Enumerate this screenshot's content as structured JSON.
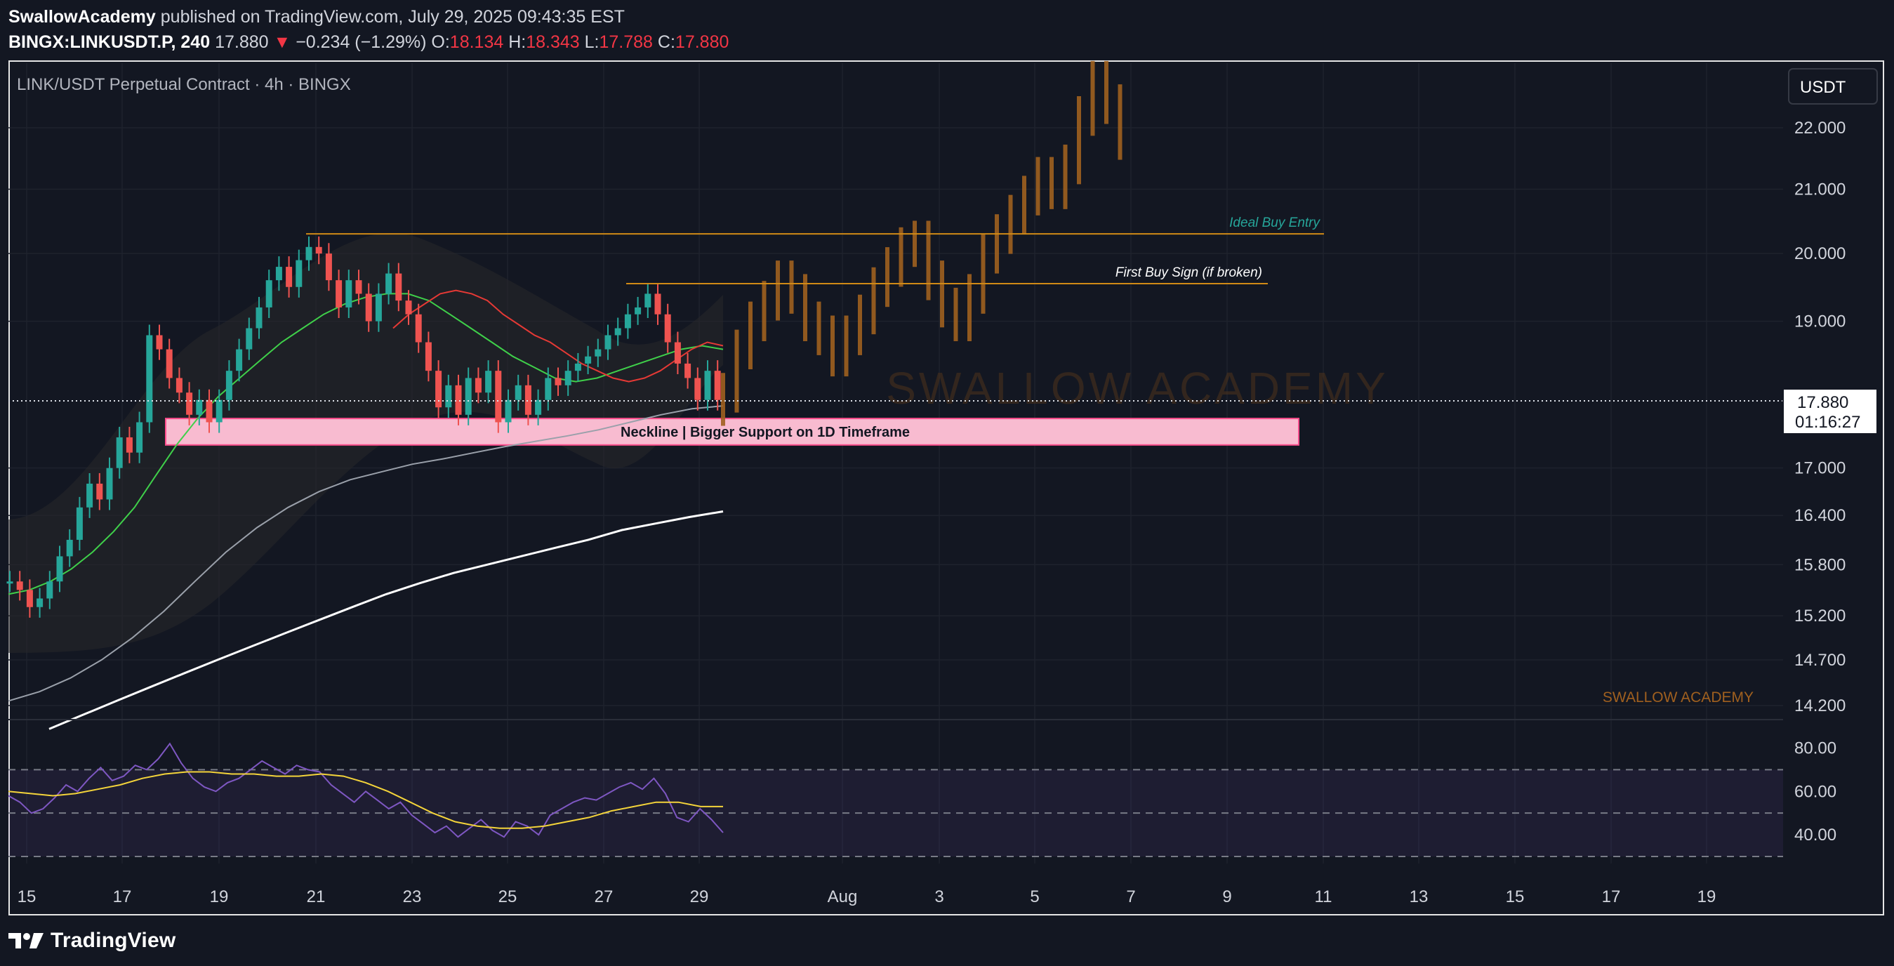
{
  "header": {
    "author": "SwallowAcademy",
    "published": "published on TradingView.com, July 29, 2025 09:43:35 EST",
    "symbol": "BINGX:LINKUSDT.P, 240",
    "last": "17.880",
    "change": "−0.234 (−1.29%)",
    "open_label": "O:",
    "open": "18.134",
    "high_label": "H:",
    "high": "18.343",
    "low_label": "L:",
    "low": "17.788",
    "close_label": "C:",
    "close": "17.880"
  },
  "legend": "LINK/USDT Perpetual Contract · 4h · BINGX",
  "currency_button": "USDT",
  "price_tag": {
    "price": "17.880",
    "countdown": "01:16:27"
  },
  "watermark": "SWALLOW ACADEMY",
  "signature": "SWALLOW ACADEMY",
  "footer": {
    "brand": "TradingView"
  },
  "colors": {
    "background": "#131722",
    "up": "#26a69a",
    "down": "#ef5350",
    "projection": "#a0601f",
    "level": "#d08a16",
    "support_zone": "#f8bbd0",
    "rsi_line": "#7e57c2",
    "rsi_ma": "#f4d43a"
  },
  "chart_data": [
    {
      "type": "candlestick",
      "title": "LINK/USDT Perpetual Contract · 4h · BINGX",
      "xlabel": "",
      "ylabel": "",
      "x_ticks": [
        "15",
        "17",
        "19",
        "21",
        "23",
        "25",
        "27",
        "29",
        "Aug",
        "3",
        "5",
        "7",
        "9",
        "11",
        "13",
        "15",
        "17",
        "19"
      ],
      "y_ticks": [
        "22.000",
        "21.000",
        "20.000",
        "19.000",
        "17.000",
        "16.400",
        "15.800",
        "15.200",
        "14.700",
        "14.200"
      ],
      "ylim": [
        13.9,
        23.0
      ],
      "price_scale": "log",
      "current_price": 17.88,
      "closes_approx": [
        15.6,
        15.5,
        15.3,
        15.4,
        15.6,
        15.9,
        16.1,
        16.5,
        16.8,
        16.6,
        17.0,
        17.4,
        17.2,
        17.6,
        18.8,
        18.6,
        18.2,
        18.0,
        17.7,
        17.9,
        17.6,
        17.9,
        18.3,
        18.6,
        18.9,
        19.2,
        19.6,
        19.8,
        19.5,
        19.9,
        20.1,
        20.0,
        19.6,
        19.2,
        19.6,
        19.4,
        19.0,
        19.4,
        19.7,
        19.3,
        19.1,
        18.7,
        18.3,
        17.8,
        18.1,
        17.7,
        18.2,
        18.0,
        18.3,
        17.6,
        17.9,
        18.1,
        17.7,
        17.9,
        18.2,
        18.1,
        18.3,
        18.4,
        18.5,
        18.6,
        18.8,
        18.9,
        19.1,
        19.2,
        19.4,
        19.1,
        18.7,
        18.4,
        18.2,
        17.9,
        18.3,
        17.9
      ],
      "projection_ohlc_note": "hand-drawn projected bars",
      "projection_closes_approx": [
        18.0,
        18.6,
        19.0,
        19.3,
        19.6,
        19.4,
        19.0,
        18.8,
        18.5,
        18.8,
        19.1,
        19.5,
        19.8,
        20.1,
        20.2,
        19.6,
        19.2,
        19.0,
        19.4,
        20.0,
        20.3,
        20.6,
        20.9,
        21.2,
        21.0,
        21.4,
        22.2,
        22.8,
        22.4,
        21.8
      ],
      "series": [
        {
          "name": "",
          "style": "ema-green",
          "values": [
            15.45,
            15.5,
            15.6,
            15.75,
            15.95,
            16.2,
            16.5,
            16.9,
            17.3,
            17.65,
            17.95,
            18.2,
            18.45,
            18.7,
            18.9,
            19.1,
            19.25,
            19.35,
            19.4,
            19.4,
            19.3,
            19.1,
            18.9,
            18.7,
            18.5,
            18.35,
            18.2,
            18.15,
            18.2,
            18.3,
            18.4,
            18.5,
            18.6,
            18.65,
            18.6
          ]
        },
        {
          "name": "",
          "style": "ema-red",
          "values": [
            18.9,
            19.1,
            19.25,
            19.4,
            19.45,
            19.4,
            19.3,
            19.1,
            18.95,
            18.8,
            18.7,
            18.55,
            18.4,
            18.3,
            18.2,
            18.15,
            18.2,
            18.3,
            18.45,
            18.6,
            18.7,
            18.65
          ]
        },
        {
          "name": "",
          "style": "ma-gray",
          "values": [
            14.25,
            14.35,
            14.5,
            14.7,
            14.95,
            15.25,
            15.6,
            15.95,
            16.25,
            16.5,
            16.7,
            16.85,
            16.95,
            17.05,
            17.12,
            17.2,
            17.28,
            17.35,
            17.42,
            17.5,
            17.6,
            17.7,
            17.78,
            17.82
          ]
        },
        {
          "name": "",
          "style": "ma-white",
          "values": [
            13.95,
            14.1,
            14.25,
            14.4,
            14.55,
            14.7,
            14.85,
            15.0,
            15.15,
            15.3,
            15.45,
            15.58,
            15.7,
            15.8,
            15.9,
            16.0,
            16.1,
            16.22,
            16.3,
            16.38,
            16.45
          ]
        }
      ],
      "levels": [
        {
          "label": "Ideal Buy Entry",
          "price": 20.3
        },
        {
          "label": "First Buy Sign (if broken)",
          "price": 19.55
        }
      ],
      "zones": [
        {
          "label": "Neckline | Bigger Support on 1D Timeframe",
          "from": 17.3,
          "to": 17.65
        }
      ]
    },
    {
      "type": "line",
      "title": "",
      "xlabel": "",
      "ylabel": "",
      "y_ticks": [
        "80.00",
        "60.00",
        "40.00"
      ],
      "ylim": [
        30,
        85
      ],
      "bands": [
        70,
        50,
        30
      ],
      "series": [
        {
          "name": "",
          "style": "rsi",
          "values": [
            58,
            55,
            50,
            52,
            57,
            63,
            60,
            66,
            71,
            65,
            67,
            72,
            70,
            75,
            82,
            73,
            66,
            62,
            60,
            64,
            66,
            70,
            74,
            71,
            68,
            72,
            70,
            69,
            63,
            59,
            55,
            60,
            56,
            52,
            55,
            49,
            45,
            41,
            44,
            39,
            43,
            47,
            42,
            39,
            46,
            44,
            40,
            49,
            52,
            55,
            57,
            56,
            59,
            62,
            64,
            61,
            66,
            59,
            48,
            46,
            52,
            47,
            41
          ]
        },
        {
          "name": "",
          "style": "rsi-ma",
          "values": [
            60,
            59,
            58,
            59,
            61,
            63,
            66,
            68,
            69,
            69,
            68,
            68,
            67,
            67,
            68,
            67,
            64,
            60,
            55,
            50,
            46,
            44,
            43,
            43,
            44,
            46,
            48,
            51,
            53,
            55,
            55,
            53,
            53
          ]
        }
      ]
    }
  ]
}
